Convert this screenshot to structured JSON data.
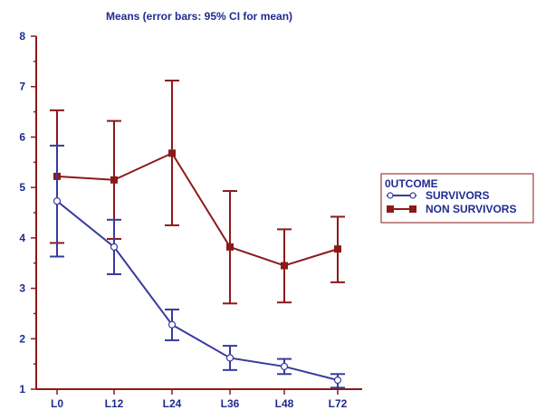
{
  "chart_data": {
    "type": "line",
    "title": "Means  (error bars: 95% CI for mean)",
    "xlabel": "",
    "ylabel": "",
    "categories": [
      "L0",
      "L12",
      "L24",
      "L36",
      "L48",
      "L72"
    ],
    "ylim": [
      1,
      8
    ],
    "yticks": [
      "1",
      "2",
      "3",
      "4",
      "5",
      "6",
      "7",
      "8"
    ],
    "grid": false,
    "legend_title": "0UTCOME",
    "legend_position": "right",
    "series": [
      {
        "name": "SURVIVORS",
        "color": "#3a3a9e",
        "marker": "open-circle",
        "values": [
          4.73,
          3.82,
          2.28,
          1.62,
          1.45,
          1.18
        ],
        "ci_low": [
          3.63,
          3.28,
          1.97,
          1.38,
          1.3,
          1.03
        ],
        "ci_high": [
          5.83,
          4.36,
          2.58,
          1.86,
          1.6,
          1.3
        ]
      },
      {
        "name": "NON SURVIVORS",
        "color": "#8b1a1a",
        "marker": "filled-square",
        "values": [
          5.22,
          5.15,
          5.68,
          3.82,
          3.45,
          3.78
        ],
        "ci_low": [
          3.9,
          3.98,
          4.25,
          2.7,
          2.72,
          3.12
        ],
        "ci_high": [
          6.53,
          6.32,
          7.12,
          4.93,
          4.17,
          4.42
        ]
      }
    ]
  }
}
